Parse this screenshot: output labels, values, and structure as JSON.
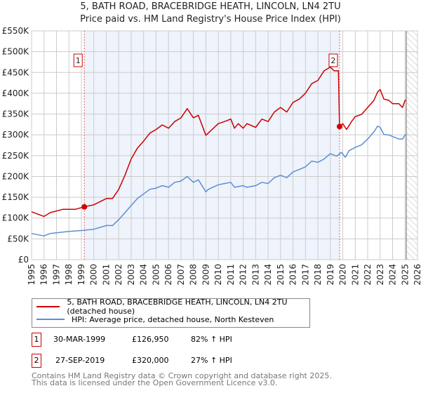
{
  "title_line1": "5, BATH ROAD, BRACEBRIDGE HEATH, LINCOLN, LN4 2TU",
  "title_line2": "Price paid vs. HM Land Registry's House Price Index (HPI)",
  "colors": {
    "property": "#cc0000",
    "hpi": "#5b8fd4",
    "shade": "#eef3fc",
    "grid": "#cccccc",
    "marker_line": "#e06060"
  },
  "chart_data": {
    "type": "line",
    "xlim": [
      1995,
      2026
    ],
    "ylim": [
      0,
      550000
    ],
    "x_ticks": [
      "1995",
      "1996",
      "1997",
      "1998",
      "1999",
      "2000",
      "2001",
      "2002",
      "2003",
      "2004",
      "2005",
      "2006",
      "2007",
      "2008",
      "2009",
      "2010",
      "2011",
      "2012",
      "2013",
      "2014",
      "2015",
      "2016",
      "2017",
      "2018",
      "2019",
      "2020",
      "2021",
      "2022",
      "2023",
      "2024",
      "2025",
      "2026"
    ],
    "y_ticks": [
      "£0",
      "£50K",
      "£100K",
      "£150K",
      "£200K",
      "£250K",
      "£300K",
      "£350K",
      "£400K",
      "£450K",
      "£500K",
      "£550K"
    ],
    "grid": true,
    "data_end": 2025.1,
    "series": [
      {
        "name": "5, BATH ROAD, BRACEBRIDGE HEATH, LINCOLN, LN4 2TU (detached house)",
        "x": [
          1995,
          1996,
          1996.5,
          1997.5,
          1998.5,
          1999.24,
          2000,
          2001,
          2001.5,
          2002,
          2002.5,
          2003,
          2003.5,
          2004,
          2004.5,
          2005,
          2005.5,
          2006,
          2006.5,
          2007,
          2007.5,
          2008,
          2008.4,
          2009,
          2010,
          2010.5,
          2011,
          2011.3,
          2011.6,
          2012,
          2012.3,
          2013,
          2013.5,
          2014,
          2014.5,
          2015,
          2015.5,
          2016,
          2016.5,
          2017,
          2017.5,
          2018,
          2018.5,
          2019,
          2019.3,
          2019.65,
          2019.74,
          2020,
          2020.3,
          2020.7,
          2021,
          2021.5,
          2022,
          2022.5,
          2022.8,
          2023,
          2023.3,
          2023.7,
          2024,
          2024.5,
          2024.8,
          2025,
          2025.1
        ],
        "y": [
          115,
          104,
          113,
          121,
          121,
          127,
          132,
          147,
          147,
          169,
          203,
          242,
          268,
          285,
          304,
          313,
          324,
          316,
          332,
          341,
          363,
          341,
          347,
          299,
          327,
          332,
          338,
          316,
          327,
          316,
          327,
          318,
          338,
          332,
          355,
          366,
          355,
          378,
          386,
          400,
          423,
          431,
          454,
          463,
          454,
          454,
          320,
          327,
          313,
          332,
          344,
          349,
          366,
          383,
          403,
          409,
          386,
          383,
          375,
          375,
          366,
          383,
          383
        ]
      },
      {
        "name": "HPI: Average price, detached house, North Kesteven",
        "x": [
          1995,
          1996,
          1996.5,
          1998,
          1999,
          2000,
          2001,
          2001.5,
          2002,
          2002.5,
          2003,
          2003.5,
          2004,
          2004.5,
          2005,
          2005.5,
          2006,
          2006.5,
          2007,
          2007.5,
          2008,
          2008.4,
          2009,
          2009.2,
          2010,
          2010.5,
          2011,
          2011.3,
          2012,
          2012.3,
          2013,
          2013.5,
          2014,
          2014.5,
          2015,
          2015.5,
          2016,
          2016.5,
          2017,
          2017.5,
          2018,
          2018.5,
          2019,
          2019.5,
          2019.9,
          2020.2,
          2020.5,
          2021,
          2021.5,
          2022,
          2022.5,
          2022.8,
          2023,
          2023.3,
          2023.7,
          2024,
          2024.5,
          2024.8,
          2025,
          2025.1
        ],
        "y": [
          63,
          57,
          63,
          68,
          70,
          73,
          82,
          82,
          96,
          113,
          130,
          147,
          158,
          169,
          172,
          178,
          174,
          186,
          189,
          200,
          186,
          192,
          163,
          169,
          180,
          183,
          186,
          174,
          178,
          174,
          178,
          186,
          183,
          197,
          203,
          197,
          211,
          217,
          223,
          237,
          234,
          242,
          255,
          249,
          258,
          246,
          262,
          270,
          276,
          290,
          307,
          321,
          318,
          301,
          300,
          296,
          290,
          290,
          300,
          300
        ]
      }
    ],
    "y_unit": "thousands GBP",
    "annotations": [
      {
        "label": "1",
        "x": 1999.24,
        "y": 126.95
      },
      {
        "label": "2",
        "x": 2019.74,
        "y": 320
      }
    ]
  },
  "legend": {
    "property": "5, BATH ROAD, BRACEBRIDGE HEATH, LINCOLN, LN4 2TU (detached house)",
    "hpi": "HPI: Average price, detached house, North Kesteven"
  },
  "sales": [
    {
      "num": "1",
      "date": "30-MAR-1999",
      "price": "£126,950",
      "hpi": "82% ↑ HPI"
    },
    {
      "num": "2",
      "date": "27-SEP-2019",
      "price": "£320,000",
      "hpi": "27% ↑ HPI"
    }
  ],
  "footer_line1": "Contains HM Land Registry data © Crown copyright and database right 2025.",
  "footer_line2": "This data is licensed under the Open Government Licence v3.0."
}
